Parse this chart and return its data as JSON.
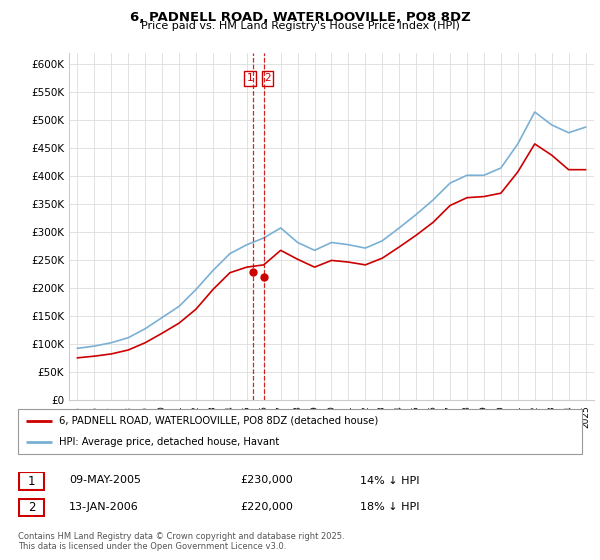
{
  "title": "6, PADNELL ROAD, WATERLOOVILLE, PO8 8DZ",
  "subtitle": "Price paid vs. HM Land Registry's House Price Index (HPI)",
  "legend_line1": "6, PADNELL ROAD, WATERLOOVILLE, PO8 8DZ (detached house)",
  "legend_line2": "HPI: Average price, detached house, Havant",
  "footer": "Contains HM Land Registry data © Crown copyright and database right 2025.\nThis data is licensed under the Open Government Licence v3.0.",
  "annotation1_label": "1",
  "annotation1_date": "09-MAY-2005",
  "annotation1_price": "£230,000",
  "annotation1_hpi": "14% ↓ HPI",
  "annotation2_label": "2",
  "annotation2_date": "13-JAN-2006",
  "annotation2_price": "£220,000",
  "annotation2_hpi": "18% ↓ HPI",
  "red_color": "#cc0000",
  "blue_color": "#7ab0d4",
  "ylim": [
    0,
    620000
  ],
  "yticks": [
    0,
    50000,
    100000,
    150000,
    200000,
    250000,
    300000,
    350000,
    400000,
    450000,
    500000,
    550000,
    600000
  ],
  "hpi_years": [
    1995,
    1996,
    1997,
    1998,
    1999,
    2000,
    2001,
    2002,
    2003,
    2004,
    2005,
    2006,
    2007,
    2008,
    2009,
    2010,
    2011,
    2012,
    2013,
    2014,
    2015,
    2016,
    2017,
    2018,
    2019,
    2020,
    2021,
    2022,
    2023,
    2024,
    2025
  ],
  "hpi_values": [
    93000,
    97000,
    103000,
    112000,
    128000,
    148000,
    168000,
    198000,
    232000,
    262000,
    278000,
    290000,
    308000,
    282000,
    268000,
    282000,
    278000,
    272000,
    285000,
    308000,
    332000,
    358000,
    388000,
    402000,
    402000,
    415000,
    458000,
    515000,
    492000,
    478000,
    488000
  ],
  "red_years": [
    1995,
    1996,
    1997,
    1998,
    1999,
    2000,
    2001,
    2002,
    2003,
    2004,
    2005,
    2006,
    2007,
    2008,
    2009,
    2010,
    2011,
    2012,
    2013,
    2014,
    2015,
    2016,
    2017,
    2018,
    2019,
    2020,
    2021,
    2022,
    2023,
    2024,
    2025
  ],
  "red_values": [
    76000,
    79000,
    83000,
    90000,
    103000,
    120000,
    138000,
    163000,
    198000,
    228000,
    238000,
    242000,
    268000,
    252000,
    238000,
    250000,
    247000,
    242000,
    254000,
    274000,
    295000,
    318000,
    348000,
    362000,
    364000,
    370000,
    408000,
    458000,
    438000,
    412000,
    412000
  ],
  "sale1_x": 2005.35,
  "sale1_y": 230000,
  "sale2_x": 2006.04,
  "sale2_y": 220000,
  "xtick_years": [
    1995,
    1996,
    1997,
    1998,
    1999,
    2000,
    2001,
    2002,
    2003,
    2004,
    2005,
    2006,
    2007,
    2008,
    2009,
    2010,
    2011,
    2012,
    2013,
    2014,
    2015,
    2016,
    2017,
    2018,
    2019,
    2020,
    2021,
    2022,
    2023,
    2024,
    2025
  ],
  "xlim": [
    1994.5,
    2025.5
  ]
}
